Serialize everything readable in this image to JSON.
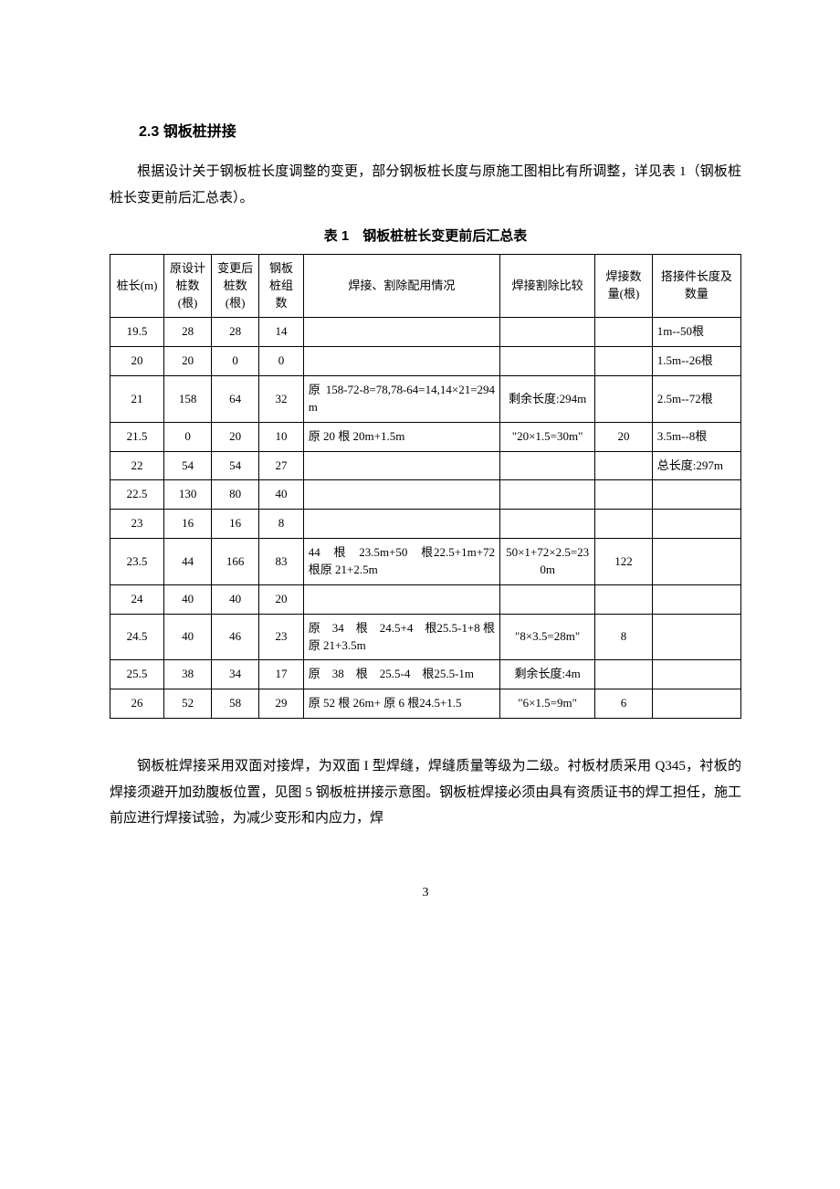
{
  "heading": "2.3 钢板桩拼接",
  "intro": "根据设计关于钢板桩长度调整的变更，部分钢板桩长度与原施工图相比有所调整，详见表 1（钢板桩桩长变更前后汇总表）。",
  "table": {
    "caption": "表 1　钢板桩桩长变更前后汇总表",
    "columns": [
      "桩长(m)",
      "原设计桩数(根)",
      "变更后桩数(根)",
      "钢板桩组数",
      "焊接、割除配用情况",
      "焊接割除比较",
      "焊接数量(根)",
      "搭接件长度及数量"
    ],
    "col_align": [
      "c",
      "c",
      "c",
      "c",
      "j",
      "c",
      "c",
      "l"
    ],
    "rows": [
      [
        "19.5",
        "28",
        "28",
        "14",
        "",
        "",
        "",
        "1m--50根"
      ],
      [
        "20",
        "20",
        "0",
        "0",
        "",
        "",
        "",
        "1.5m--26根"
      ],
      [
        "21",
        "158",
        "64",
        "32",
        "原158-72-8=78,78-64=14,14×21=294m",
        "剩余长度:294m",
        "",
        "2.5m--72根"
      ],
      [
        "21.5",
        "0",
        "20",
        "10",
        "原 20 根 20m+1.5m",
        "\"20×1.5=30m\"",
        "20",
        "3.5m--8根"
      ],
      [
        "22",
        "54",
        "54",
        "27",
        "",
        "",
        "",
        "总长度:297m"
      ],
      [
        "22.5",
        "130",
        "80",
        "40",
        "",
        "",
        "",
        ""
      ],
      [
        "23",
        "16",
        "16",
        "8",
        "",
        "",
        "",
        ""
      ],
      [
        "23.5",
        "44",
        "166",
        "83",
        "44　根　23.5m+50　根22.5+1m+72 根原 21+2.5m",
        "50×1+72×2.5=230m",
        "122",
        ""
      ],
      [
        "24",
        "40",
        "40",
        "20",
        "",
        "",
        "",
        ""
      ],
      [
        "24.5",
        "40",
        "46",
        "23",
        "原　34　根　24.5+4　根25.5-1+8 根原 21+3.5m",
        "\"8×3.5=28m\"",
        "8",
        ""
      ],
      [
        "25.5",
        "38",
        "34",
        "17",
        "原　38　根　25.5-4　根25.5-1m",
        "剩余长度:4m",
        "",
        ""
      ],
      [
        "26",
        "52",
        "58",
        "29",
        "原 52 根 26m+ 原 6 根24.5+1.5",
        "\"6×1.5=9m\"",
        "6",
        ""
      ]
    ]
  },
  "after": "钢板桩焊接采用双面对接焊，为双面 I 型焊缝，焊缝质量等级为二级。衬板材质采用 Q345，衬板的焊接须避开加劲腹板位置，见图 5 钢板桩拼接示意图。钢板桩焊接必须由具有资质证书的焊工担任，施工前应进行焊接试验，为减少变形和内应力，焊",
  "pagenum": "3"
}
